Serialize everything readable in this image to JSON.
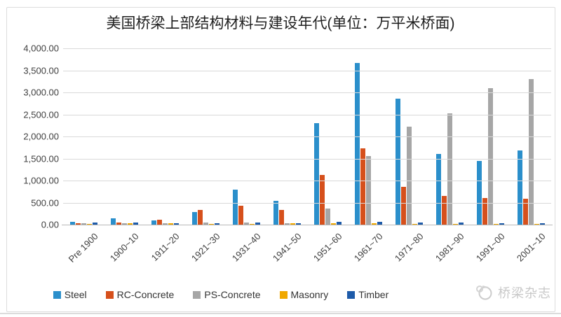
{
  "title": "美国桥梁上部结构材料与建设年代(单位：万平米桥面)",
  "watermark": {
    "text": "桥梁杂志",
    "icon": "bridge-magazine-logo"
  },
  "axes": {
    "ytick_labels": [
      "0.00",
      "500.00",
      "1,000.00",
      "1,500.00",
      "2,000.00",
      "2,500.00",
      "3,000.00",
      "3,500.00",
      "4,000.00"
    ]
  },
  "chart_data": {
    "type": "bar",
    "title": "美国桥梁上部结构材料与建设年代(单位：万平米桥面)",
    "categories": [
      "Pre 1900",
      "1900~10",
      "1911~20",
      "1921~30",
      "1931~40",
      "1941~50",
      "1951~60",
      "1961~70",
      "1971~80",
      "1981~90",
      "1991~00",
      "2001~10"
    ],
    "series": [
      {
        "name": "Steel",
        "color": "#2B8FCB",
        "values": [
          70,
          150,
          100,
          280,
          800,
          540,
          2300,
          3670,
          2850,
          1610,
          1450,
          1680
        ]
      },
      {
        "name": "RC-Concrete",
        "color": "#D6501C",
        "values": [
          30,
          50,
          110,
          330,
          430,
          330,
          1120,
          1730,
          850,
          650,
          600,
          590
        ]
      },
      {
        "name": "PS-Concrete",
        "color": "#A6A6A6",
        "values": [
          25,
          30,
          25,
          50,
          50,
          25,
          360,
          1560,
          2220,
          2530,
          3100,
          3300
        ]
      },
      {
        "name": "Masonry",
        "color": "#F0A800",
        "values": [
          20,
          25,
          25,
          15,
          20,
          25,
          30,
          30,
          20,
          10,
          15,
          15
        ]
      },
      {
        "name": "Timber",
        "color": "#1E5BA9",
        "values": [
          40,
          45,
          35,
          30,
          40,
          30,
          60,
          60,
          50,
          40,
          35,
          30
        ]
      }
    ],
    "ylim": [
      0,
      4000
    ],
    "ytick_step": 500,
    "grid": true,
    "legend_position": "bottom",
    "xlabel": "",
    "ylabel": ""
  }
}
